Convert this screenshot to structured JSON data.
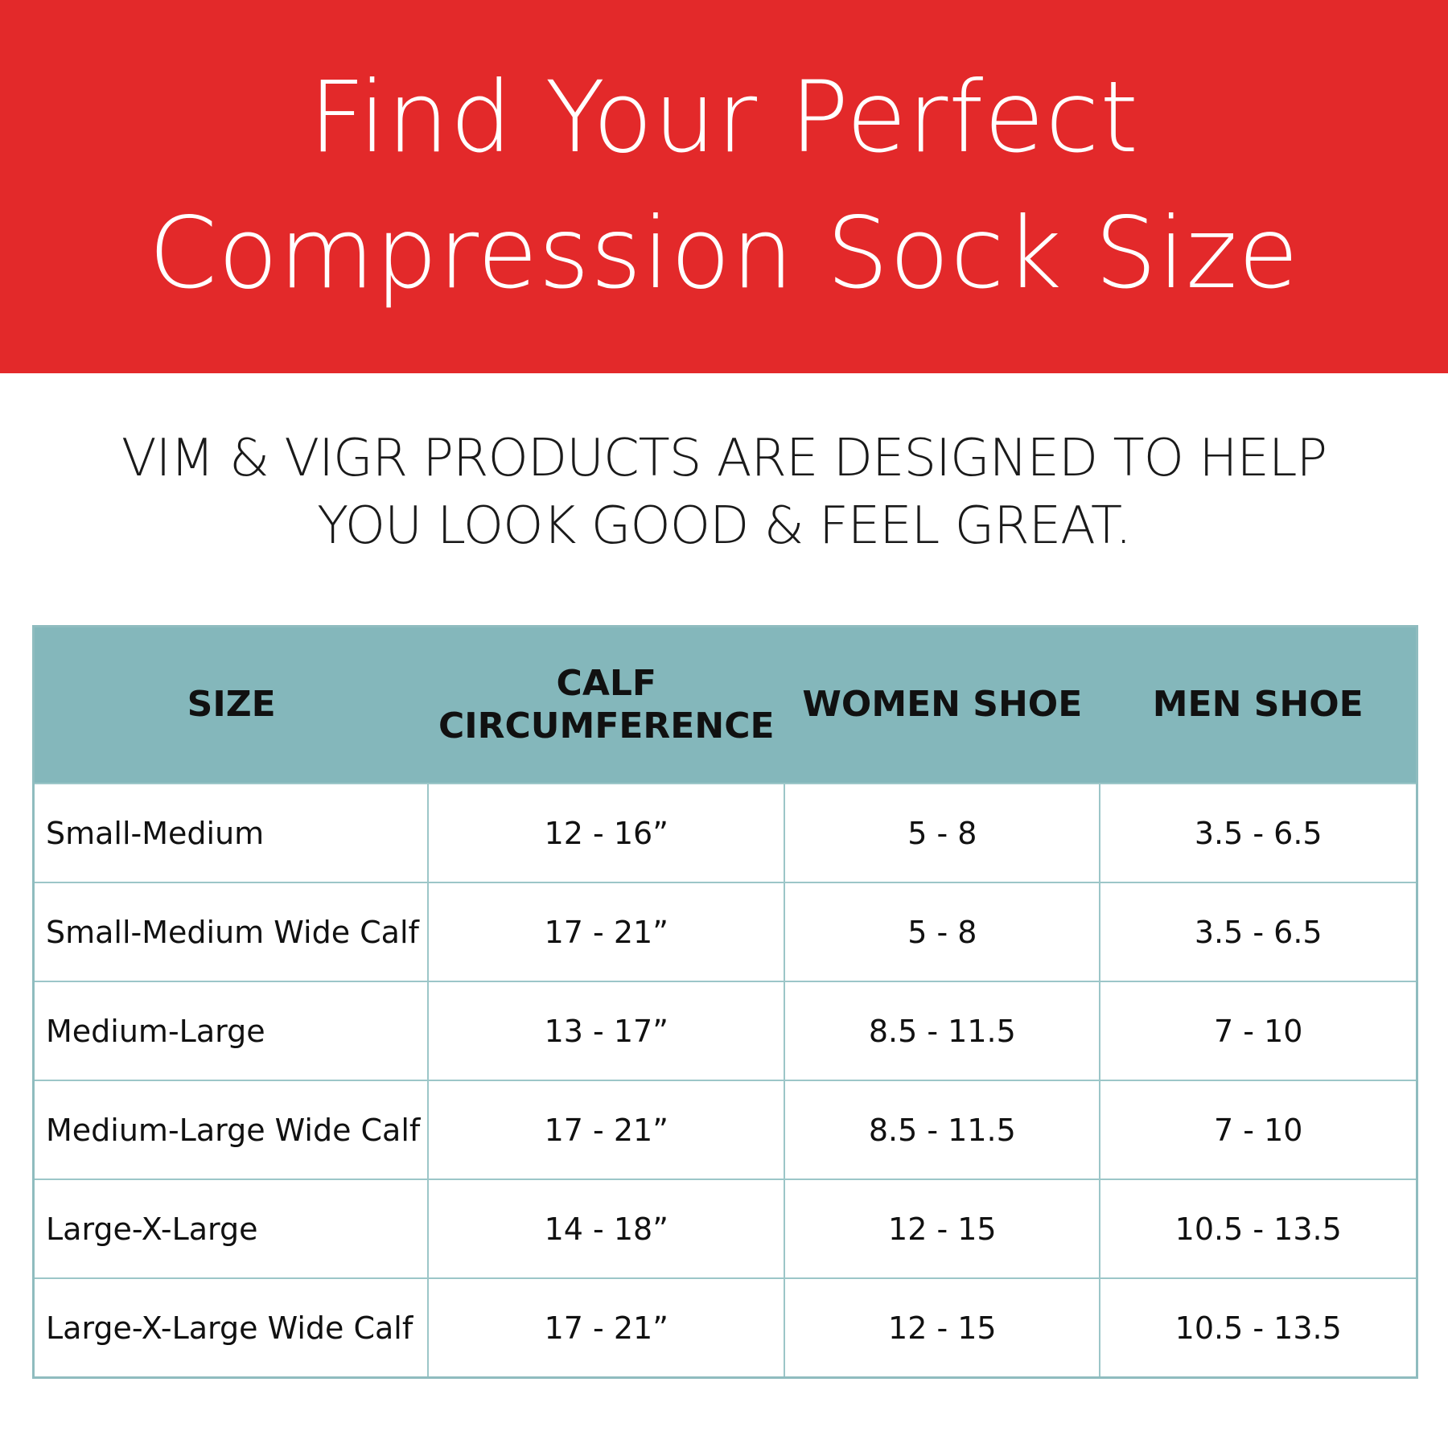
{
  "banner": {
    "title_line1": "Find Your Perfect",
    "title_line2": "Compression Sock Size",
    "color": "#e3292a"
  },
  "subtitle": {
    "line1": "VIM & VIGR PRODUCTS ARE DESIGNED TO HELP",
    "line2": "YOU LOOK GOOD & FEEL GREAT."
  },
  "table": {
    "header_color": "#84b7bb",
    "headers": [
      "SIZE",
      "CALF\nCIRCUMFERENCE",
      "WOMEN SHOE",
      "MEN SHOE"
    ],
    "rows": [
      [
        "Small-Medium",
        "12 - 16”",
        "5 - 8",
        "3.5 - 6.5"
      ],
      [
        "Small-Medium Wide Calf",
        "17 - 21”",
        "5 - 8",
        "3.5 - 6.5"
      ],
      [
        "Medium-Large",
        "13 - 17”",
        "8.5 - 11.5",
        "7 - 10"
      ],
      [
        "Medium-Large Wide Calf",
        "17 - 21”",
        "8.5 - 11.5",
        "7 - 10"
      ],
      [
        "Large-X-Large",
        "14 - 18”",
        "12 - 15",
        "10.5 - 13.5"
      ],
      [
        "Large-X-Large Wide Calf",
        "17 - 21”",
        "12 - 15",
        "10.5 - 13.5"
      ]
    ]
  }
}
